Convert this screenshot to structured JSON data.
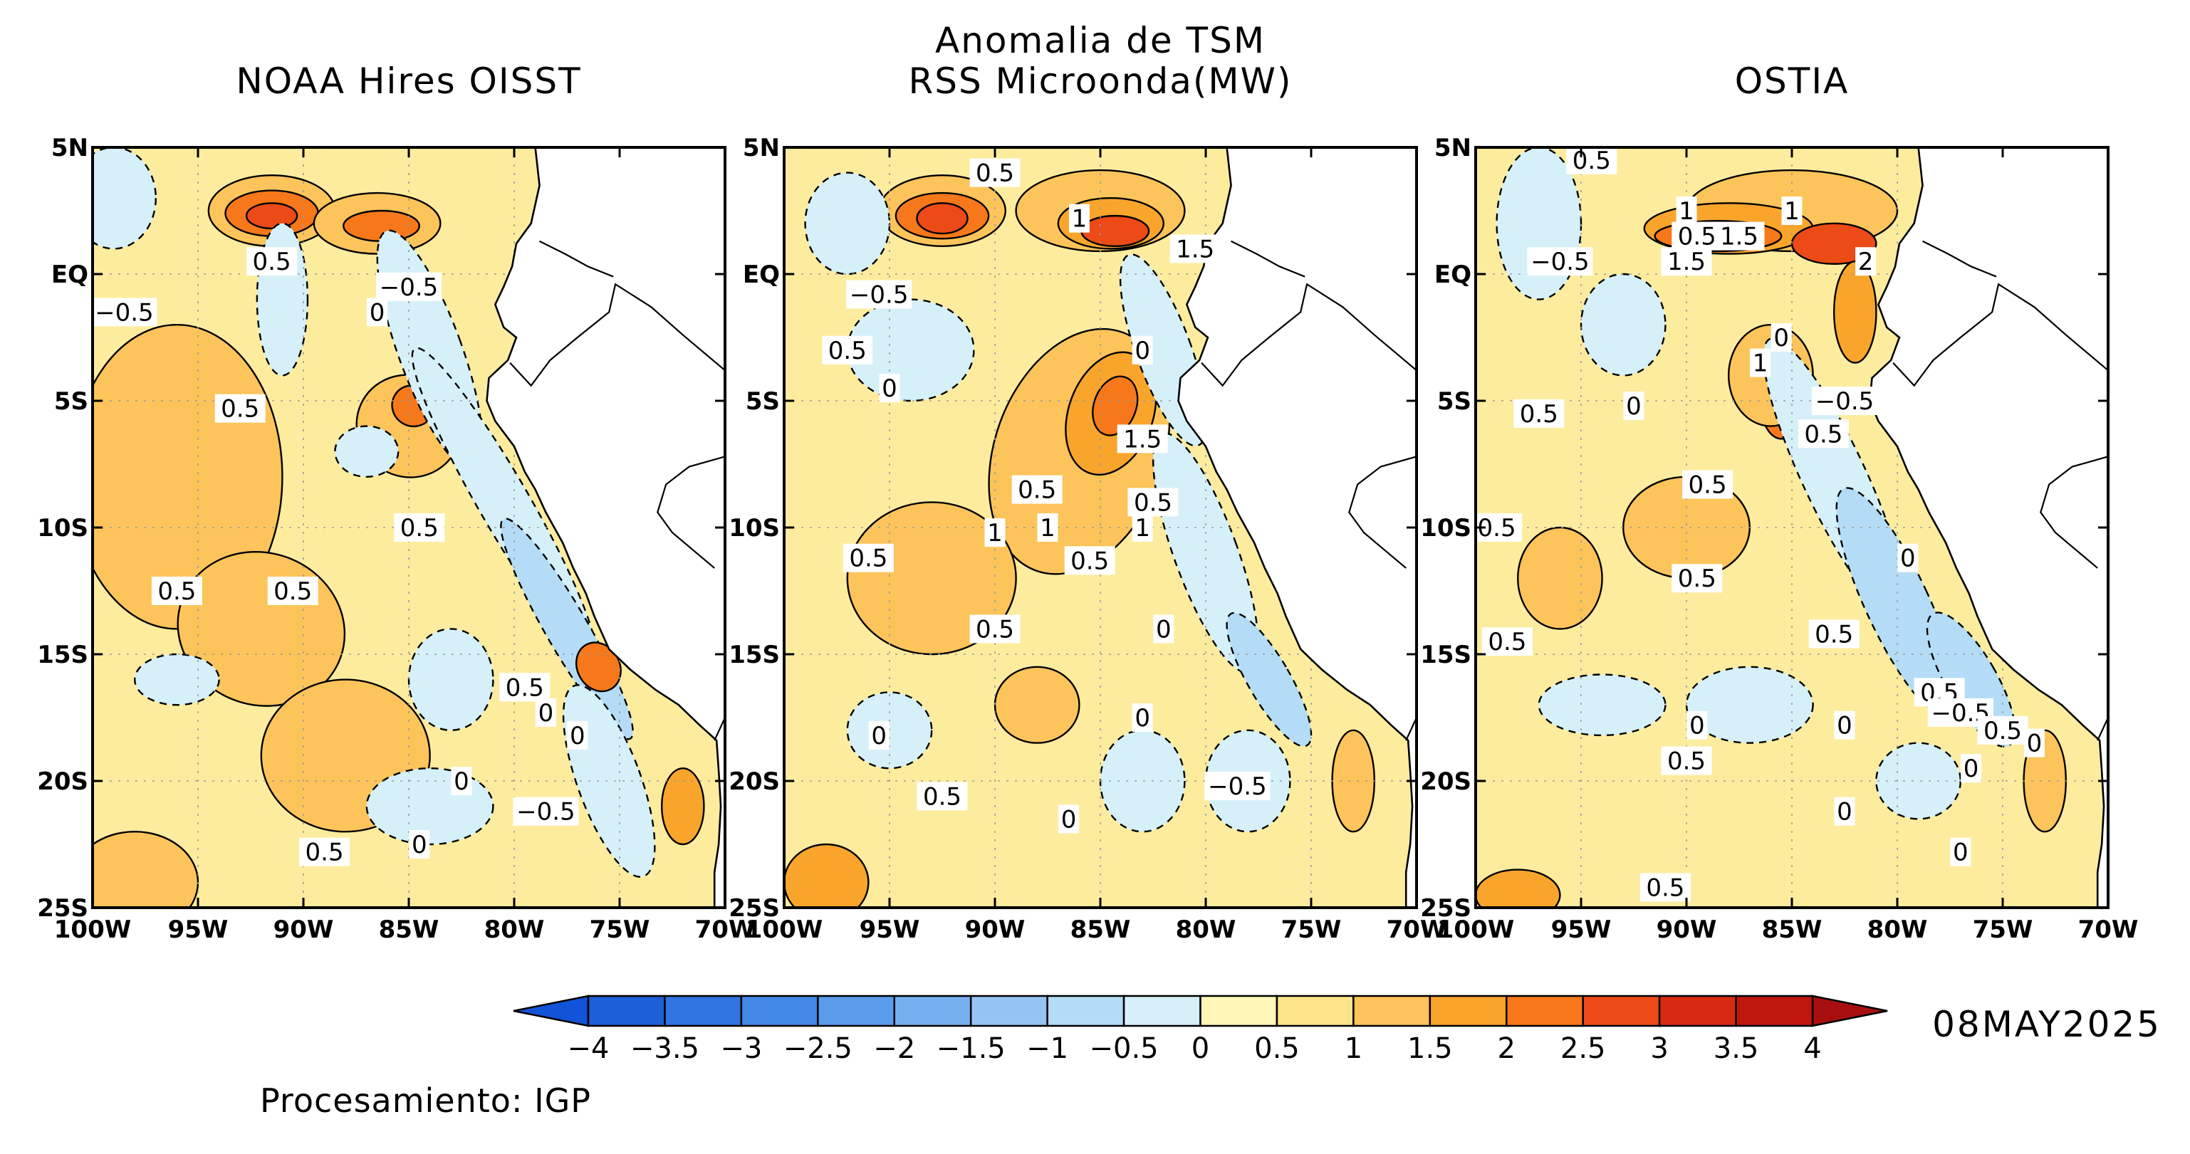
{
  "header": {
    "main_title_line1": "Anomalia de TSM",
    "main_title_line2": "RSS Microonda(MW)"
  },
  "panels": [
    {
      "id": "oisst",
      "title": "NOAA Hires OISST",
      "contour_labels": [
        {
          "text": "0.5",
          "lon": -91.5,
          "lat": 0.5
        },
        {
          "text": "−0.5",
          "lon": -98.5,
          "lat": -1.5
        },
        {
          "text": "−0.5",
          "lon": -85,
          "lat": -0.5
        },
        {
          "text": "0",
          "lon": -86.5,
          "lat": -1.5
        },
        {
          "text": "0.5",
          "lon": -93,
          "lat": -5.3
        },
        {
          "text": "0.5",
          "lon": -84.5,
          "lat": -10
        },
        {
          "text": "0.5",
          "lon": -96,
          "lat": -12.5
        },
        {
          "text": "0.5",
          "lon": -90.5,
          "lat": -12.5
        },
        {
          "text": "0.5",
          "lon": -79.5,
          "lat": -16.3
        },
        {
          "text": "0",
          "lon": -78.5,
          "lat": -17.3
        },
        {
          "text": "0",
          "lon": -77,
          "lat": -18.2
        },
        {
          "text": "0",
          "lon": -82.5,
          "lat": -20
        },
        {
          "text": "−0.5",
          "lon": -78.5,
          "lat": -21.2
        },
        {
          "text": "0",
          "lon": -84.5,
          "lat": -22.5
        },
        {
          "text": "0.5",
          "lon": -89,
          "lat": -22.8
        }
      ]
    },
    {
      "id": "rss",
      "title": "",
      "contour_labels": [
        {
          "text": "0.5",
          "lon": -90,
          "lat": 4
        },
        {
          "text": "1",
          "lon": -86,
          "lat": 2.2
        },
        {
          "text": "1.5",
          "lon": -80.5,
          "lat": 1
        },
        {
          "text": "−0.5",
          "lon": -95.5,
          "lat": -0.8
        },
        {
          "text": "0.5",
          "lon": -97,
          "lat": -3
        },
        {
          "text": "0",
          "lon": -95,
          "lat": -4.5
        },
        {
          "text": "0",
          "lon": -83,
          "lat": -3
        },
        {
          "text": "1.5",
          "lon": -83,
          "lat": -6.5
        },
        {
          "text": "0.5",
          "lon": -88,
          "lat": -8.5
        },
        {
          "text": "0.5",
          "lon": -82.5,
          "lat": -9
        },
        {
          "text": "1",
          "lon": -90,
          "lat": -10.2
        },
        {
          "text": "1",
          "lon": -87.5,
          "lat": -10
        },
        {
          "text": "1",
          "lon": -83,
          "lat": -10
        },
        {
          "text": "0.5",
          "lon": -96,
          "lat": -11.2
        },
        {
          "text": "0.5",
          "lon": -85.5,
          "lat": -11.3
        },
        {
          "text": "0.5",
          "lon": -90,
          "lat": -14
        },
        {
          "text": "0",
          "lon": -82,
          "lat": -14
        },
        {
          "text": "0",
          "lon": -95.5,
          "lat": -18.2
        },
        {
          "text": "0",
          "lon": -83,
          "lat": -17.5
        },
        {
          "text": "−0.5",
          "lon": -78.5,
          "lat": -20.2
        },
        {
          "text": "0.5",
          "lon": -92.5,
          "lat": -20.6
        },
        {
          "text": "0",
          "lon": -86.5,
          "lat": -21.5
        }
      ]
    },
    {
      "id": "ostia",
      "title": "OSTIA",
      "contour_labels": [
        {
          "text": "0.5",
          "lon": -94.5,
          "lat": 4.5
        },
        {
          "text": "1",
          "lon": -90,
          "lat": 2.5
        },
        {
          "text": "1",
          "lon": -85,
          "lat": 2.5
        },
        {
          "text": "0.5",
          "lon": -89.5,
          "lat": 1.5
        },
        {
          "text": "1.5",
          "lon": -87.5,
          "lat": 1.5
        },
        {
          "text": "−0.5",
          "lon": -96,
          "lat": 0.5
        },
        {
          "text": "1.5",
          "lon": -90,
          "lat": 0.5
        },
        {
          "text": "2",
          "lon": -81.5,
          "lat": 0.5
        },
        {
          "text": "0",
          "lon": -85.5,
          "lat": -2.5
        },
        {
          "text": "1",
          "lon": -86.5,
          "lat": -3.5
        },
        {
          "text": "0.5",
          "lon": -97,
          "lat": -5.5
        },
        {
          "text": "0",
          "lon": -92.5,
          "lat": -5.2
        },
        {
          "text": "−0.5",
          "lon": -82.5,
          "lat": -5
        },
        {
          "text": "0.5",
          "lon": -83.5,
          "lat": -6.3
        },
        {
          "text": "0.5",
          "lon": -89,
          "lat": -8.3
        },
        {
          "text": "0.5",
          "lon": -99,
          "lat": -10
        },
        {
          "text": "0",
          "lon": -79.5,
          "lat": -11.2
        },
        {
          "text": "0.5",
          "lon": -89.5,
          "lat": -12
        },
        {
          "text": "0.5",
          "lon": -98.5,
          "lat": -14.5
        },
        {
          "text": "0.5",
          "lon": -83,
          "lat": -14.2
        },
        {
          "text": "0.5",
          "lon": -78,
          "lat": -16.5
        },
        {
          "text": "−0.5",
          "lon": -77,
          "lat": -17.3
        },
        {
          "text": "0.5",
          "lon": -75,
          "lat": -18
        },
        {
          "text": "0",
          "lon": -73.5,
          "lat": -18.5
        },
        {
          "text": "0",
          "lon": -89.5,
          "lat": -17.8
        },
        {
          "text": "0",
          "lon": -82.5,
          "lat": -17.8
        },
        {
          "text": "0.5",
          "lon": -90,
          "lat": -19.2
        },
        {
          "text": "0",
          "lon": -76.5,
          "lat": -19.5
        },
        {
          "text": "0",
          "lon": -82.5,
          "lat": -21.2
        },
        {
          "text": "0",
          "lon": -77,
          "lat": -22.8
        },
        {
          "text": "0.5",
          "lon": -91,
          "lat": -24.2
        }
      ]
    }
  ],
  "axes": {
    "lat_ticks": [
      {
        "value": 5,
        "label": "5N"
      },
      {
        "value": 0,
        "label": "EQ"
      },
      {
        "value": -5,
        "label": "5S"
      },
      {
        "value": -10,
        "label": "10S"
      },
      {
        "value": -15,
        "label": "15S"
      },
      {
        "value": -20,
        "label": "20S"
      },
      {
        "value": -25,
        "label": "25S"
      }
    ],
    "lon_ticks": [
      {
        "value": -100,
        "label": "100W"
      },
      {
        "value": -95,
        "label": "95W"
      },
      {
        "value": -90,
        "label": "90W"
      },
      {
        "value": -85,
        "label": "85W"
      },
      {
        "value": -80,
        "label": "80W"
      },
      {
        "value": -75,
        "label": "75W"
      },
      {
        "value": -70,
        "label": "70W"
      }
    ],
    "lon_range": [
      -100,
      -70
    ],
    "lat_range": [
      -25,
      5
    ]
  },
  "colorbar": {
    "labels": [
      "−4",
      "−3.5",
      "−3",
      "−2.5",
      "−2",
      "−1.5",
      "−1",
      "−0.5",
      "0",
      "0.5",
      "1",
      "1.5",
      "2",
      "2.5",
      "3",
      "3.5",
      "4"
    ],
    "colors": [
      "#1d5fd6",
      "#2f74e0",
      "#4388e6",
      "#5a9ceb",
      "#76aff0",
      "#95c4f4",
      "#b4dcf6",
      "#d6f0fa",
      "#fff6b8",
      "#fde389",
      "#fcc45a",
      "#f9a52c",
      "#f6781a",
      "#ec4a16",
      "#d72a12",
      "#c0160e"
    ],
    "low_color": "#1254d8",
    "high_color": "#a81010"
  },
  "date": "08MAY2025",
  "footer": "Procesamiento: IGP"
}
